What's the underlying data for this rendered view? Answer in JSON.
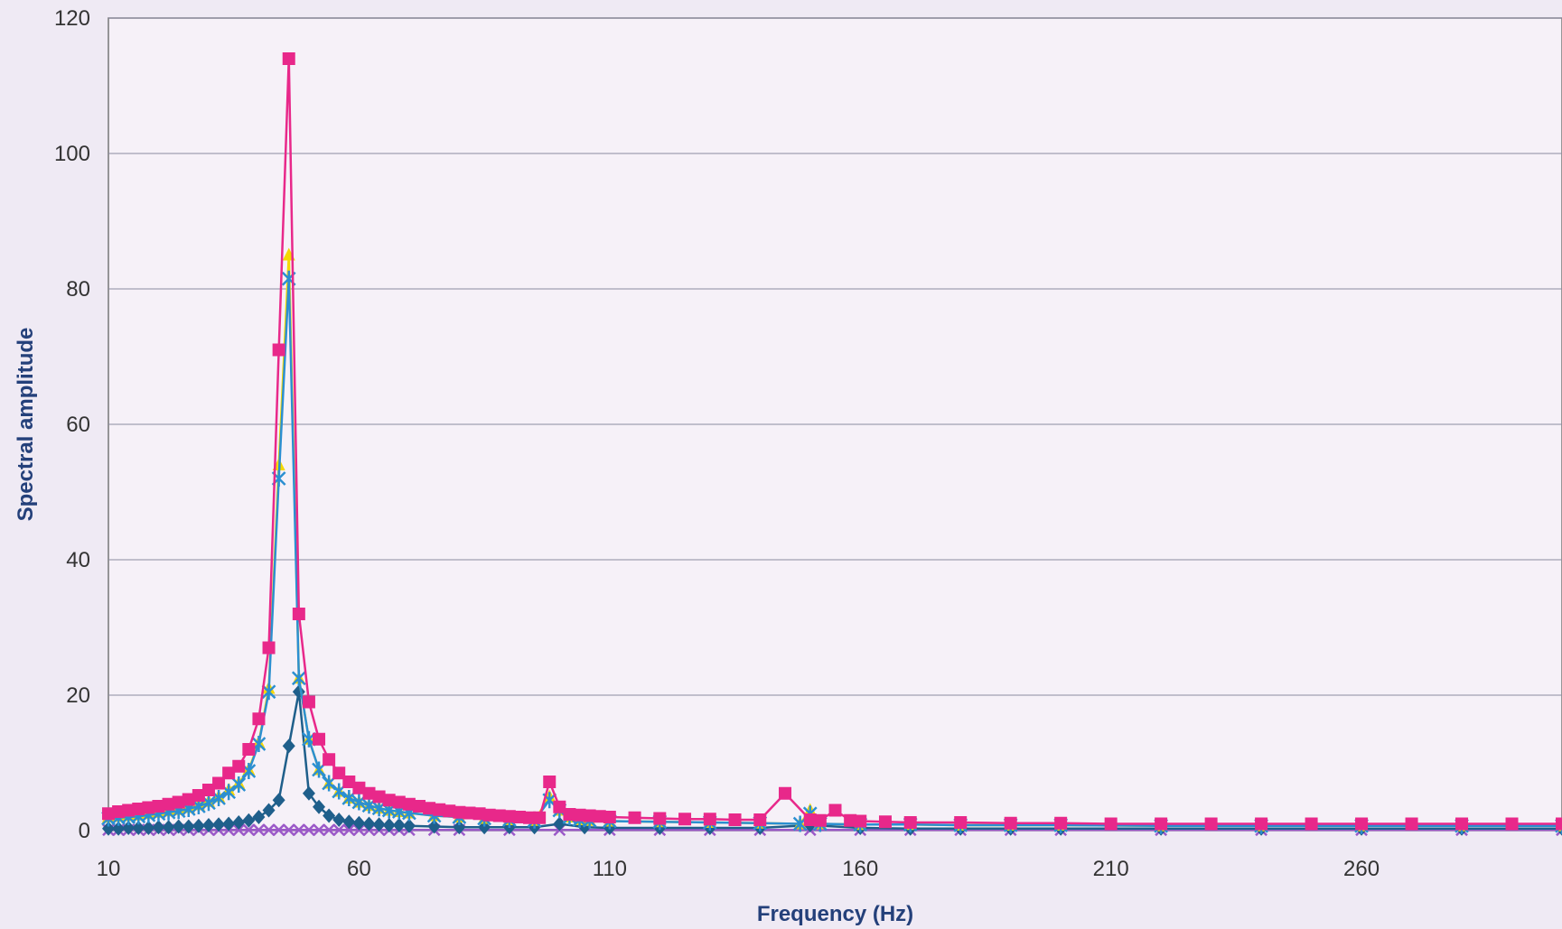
{
  "chart_data": {
    "type": "line",
    "title": "",
    "xlabel": "Frequency (Hz)",
    "ylabel": "Spectral amplitude",
    "xlim": [
      10,
      300
    ],
    "ylim": [
      0,
      120
    ],
    "x_ticks": [
      10,
      60,
      110,
      160,
      210,
      260
    ],
    "y_ticks": [
      0,
      20,
      40,
      60,
      80,
      100,
      120
    ],
    "grid": "horizontal",
    "legend": "none",
    "series": [
      {
        "color": "#1f5f8b",
        "marker": "diamond",
        "x": [
          10,
          12,
          14,
          16,
          18,
          20,
          22,
          24,
          26,
          28,
          30,
          32,
          34,
          36,
          38,
          40,
          42,
          44,
          46,
          48,
          50,
          52,
          54,
          56,
          58,
          60,
          62,
          64,
          66,
          68,
          70,
          75,
          80,
          85,
          90,
          95,
          100,
          105,
          110,
          120,
          130,
          140,
          150,
          160,
          170,
          180,
          190,
          200,
          220,
          240,
          260,
          280,
          300
        ],
        "y": [
          0.3,
          0.3,
          0.4,
          0.4,
          0.4,
          0.5,
          0.5,
          0.6,
          0.6,
          0.7,
          0.8,
          0.9,
          1.0,
          1.2,
          1.5,
          2,
          3,
          4.5,
          12.5,
          20.5,
          5.5,
          3.5,
          2.2,
          1.6,
          1.3,
          1.1,
          1,
          0.9,
          0.8,
          0.8,
          0.7,
          0.6,
          0.5,
          0.5,
          0.5,
          0.5,
          1.0,
          0.5,
          0.4,
          0.4,
          0.4,
          0.4,
          0.8,
          0.4,
          0.3,
          0.3,
          0.3,
          0.3,
          0.3,
          0.3,
          0.3,
          0.3,
          0.3
        ]
      },
      {
        "color": "#e8288a",
        "marker": "square",
        "x": [
          10,
          12,
          14,
          16,
          18,
          20,
          22,
          24,
          26,
          28,
          30,
          32,
          34,
          36,
          38,
          40,
          42,
          44,
          46,
          48,
          50,
          52,
          54,
          56,
          58,
          60,
          62,
          64,
          66,
          68,
          70,
          72,
          74,
          76,
          78,
          80,
          82,
          84,
          86,
          88,
          90,
          92,
          94,
          96,
          98,
          100,
          102,
          104,
          106,
          108,
          110,
          115,
          120,
          125,
          130,
          135,
          140,
          145,
          150,
          152,
          155,
          158,
          160,
          165,
          170,
          180,
          190,
          200,
          210,
          220,
          230,
          240,
          250,
          260,
          270,
          280,
          290,
          300
        ],
        "y": [
          2.5,
          2.8,
          3,
          3.2,
          3.4,
          3.6,
          3.9,
          4.2,
          4.6,
          5.2,
          6,
          7,
          8.5,
          9.5,
          12,
          16.5,
          27,
          71,
          114,
          32,
          19,
          13.5,
          10.5,
          8.5,
          7.2,
          6.3,
          5.5,
          5,
          4.5,
          4.2,
          3.9,
          3.6,
          3.3,
          3.1,
          2.9,
          2.7,
          2.6,
          2.5,
          2.3,
          2.2,
          2.1,
          2,
          1.9,
          1.9,
          7.2,
          3.5,
          2.4,
          2.3,
          2.2,
          2.1,
          2,
          1.9,
          1.8,
          1.7,
          1.7,
          1.6,
          1.6,
          5.5,
          1.6,
          1.5,
          3,
          1.5,
          1.4,
          1.3,
          1.2,
          1.2,
          1.1,
          1.1,
          1,
          1,
          1,
          1,
          1,
          1,
          1,
          1,
          1,
          1
        ]
      },
      {
        "color": "#f5d800",
        "marker": "triangle",
        "x": [
          10,
          12,
          14,
          16,
          18,
          20,
          22,
          24,
          26,
          28,
          30,
          32,
          34,
          36,
          38,
          40,
          42,
          44,
          46,
          48,
          50,
          52,
          54,
          56,
          58,
          60,
          62,
          64,
          66,
          68,
          70,
          75,
          80,
          85,
          90,
          95,
          98,
          100,
          102,
          104,
          106,
          110,
          120,
          130,
          140,
          148,
          150,
          152,
          160,
          170,
          180,
          190,
          200,
          220,
          240,
          260,
          280,
          300
        ],
        "y": [
          2,
          2.1,
          2.2,
          2.3,
          2.5,
          2.7,
          2.9,
          3.1,
          3.4,
          3.8,
          4.3,
          5,
          6,
          7,
          9,
          13,
          21,
          54,
          85,
          22.5,
          13.5,
          9,
          7,
          5.8,
          4.8,
          4.2,
          3.7,
          3.3,
          3,
          2.8,
          2.6,
          2.2,
          2,
          1.8,
          1.6,
          1.5,
          5,
          3,
          2,
          1.6,
          1.5,
          1.4,
          1.3,
          1.2,
          1.1,
          1,
          3,
          1,
          0.9,
          0.9,
          0.8,
          0.8,
          0.8,
          0.7,
          0.7,
          0.7,
          0.7,
          0.7
        ]
      },
      {
        "color": "#2b8fd1",
        "marker": "star",
        "x": [
          10,
          12,
          14,
          16,
          18,
          20,
          22,
          24,
          26,
          28,
          30,
          32,
          34,
          36,
          38,
          40,
          42,
          44,
          46,
          48,
          50,
          52,
          54,
          56,
          58,
          60,
          62,
          64,
          66,
          68,
          70,
          75,
          80,
          85,
          90,
          95,
          98,
          100,
          102,
          104,
          106,
          110,
          120,
          130,
          140,
          148,
          150,
          152,
          160,
          170,
          180,
          190,
          200,
          220,
          240,
          260,
          280,
          300
        ],
        "y": [
          1.8,
          1.9,
          2,
          2.1,
          2.3,
          2.5,
          2.7,
          2.9,
          3.2,
          3.6,
          4.1,
          4.8,
          5.7,
          6.8,
          8.8,
          12.8,
          20.5,
          52,
          81.5,
          22.5,
          13.5,
          9,
          7,
          5.8,
          4.8,
          4.2,
          3.7,
          3.3,
          3,
          2.8,
          2.6,
          2.2,
          2,
          1.8,
          1.6,
          1.5,
          4.5,
          3,
          2,
          1.6,
          1.5,
          1.4,
          1.3,
          1.2,
          1.1,
          1,
          2.5,
          1,
          0.9,
          0.9,
          0.8,
          0.8,
          0.8,
          0.7,
          0.7,
          0.7,
          0.7,
          0.7
        ]
      },
      {
        "color": "#9b59c8",
        "marker": "x",
        "x": [
          10,
          12,
          14,
          16,
          18,
          20,
          22,
          24,
          26,
          28,
          30,
          32,
          34,
          36,
          38,
          40,
          42,
          44,
          46,
          48,
          50,
          52,
          54,
          56,
          58,
          60,
          62,
          64,
          66,
          68,
          70,
          75,
          80,
          90,
          100,
          110,
          120,
          130,
          140,
          150,
          160,
          170,
          180,
          190,
          200,
          220,
          240,
          260,
          280,
          300
        ],
        "y": [
          0.1,
          0.1,
          0.1,
          0.1,
          0.1,
          0.1,
          0.1,
          0.1,
          0.1,
          0.1,
          0.1,
          0.1,
          0.1,
          0.1,
          0.1,
          0.1,
          0.1,
          0.1,
          0.1,
          0.1,
          0.1,
          0.1,
          0.1,
          0.1,
          0.1,
          0.1,
          0.1,
          0.1,
          0.1,
          0.1,
          0.1,
          0.1,
          0.1,
          0.1,
          0.1,
          0.1,
          0.1,
          0.1,
          0.1,
          0.1,
          0.1,
          0.1,
          0.1,
          0.1,
          0.1,
          0.1,
          0.1,
          0.1,
          0.1,
          0.1
        ]
      }
    ]
  }
}
